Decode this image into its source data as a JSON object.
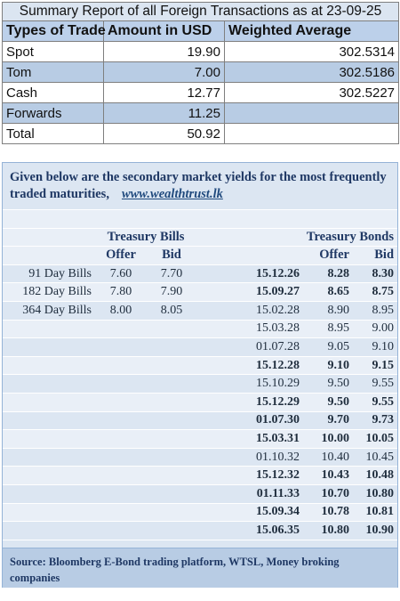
{
  "summary": {
    "title": "Summary Report of all Foreign Transactions as at 23-09-25",
    "headers": [
      "Types of Trade",
      "Amount in USD",
      "Weighted Average"
    ],
    "rows": [
      {
        "type": "Spot",
        "amount": "19.90",
        "wavg": "302.5314"
      },
      {
        "type": "Tom",
        "amount": "7.00",
        "wavg": "302.5186"
      },
      {
        "type": "Cash",
        "amount": "12.77",
        "wavg": "302.5227"
      },
      {
        "type": "Forwards",
        "amount": "11.25",
        "wavg": ""
      },
      {
        "type": "Total",
        "amount": "50.92",
        "wavg": ""
      }
    ]
  },
  "yields": {
    "intro": "Given below are the secondary market yields for the most frequently traded maturities,",
    "link": "www.wealthtrust.lk",
    "bills_title": "Treasury Bills",
    "bonds_title": "Treasury Bonds",
    "offer_label": "Offer",
    "bid_label": "Bid",
    "bills": [
      {
        "name": "91 Day Bills",
        "offer": "7.60",
        "bid": "7.70"
      },
      {
        "name": "182 Day Bills",
        "offer": "7.80",
        "bid": "7.90"
      },
      {
        "name": "364 Day Bills",
        "offer": "8.00",
        "bid": "8.05"
      }
    ],
    "bonds": [
      {
        "date": "15.12.26",
        "offer": "8.28",
        "bid": "8.30",
        "bold": true
      },
      {
        "date": "15.09.27",
        "offer": "8.65",
        "bid": "8.75",
        "bold": true
      },
      {
        "date": "15.02.28",
        "offer": "8.90",
        "bid": "8.95",
        "bold": false
      },
      {
        "date": "15.03.28",
        "offer": "8.95",
        "bid": "9.00",
        "bold": false
      },
      {
        "date": "01.07.28",
        "offer": "9.05",
        "bid": "9.10",
        "bold": false
      },
      {
        "date": "15.12.28",
        "offer": "9.10",
        "bid": "9.15",
        "bold": true
      },
      {
        "date": "15.10.29",
        "offer": "9.50",
        "bid": "9.55",
        "bold": false
      },
      {
        "date": "15.12.29",
        "offer": "9.50",
        "bid": "9.55",
        "bold": true
      },
      {
        "date": "01.07.30",
        "offer": "9.70",
        "bid": "9.73",
        "bold": true
      },
      {
        "date": "15.03.31",
        "offer": "10.00",
        "bid": "10.05",
        "bold": true
      },
      {
        "date": "01.10.32",
        "offer": "10.40",
        "bid": "10.45",
        "bold": false
      },
      {
        "date": "15.12.32",
        "offer": "10.43",
        "bid": "10.48",
        "bold": true
      },
      {
        "date": "01.11.33",
        "offer": "10.70",
        "bid": "10.80",
        "bold": true
      },
      {
        "date": "15.09.34",
        "offer": "10.78",
        "bid": "10.81",
        "bold": true
      },
      {
        "date": "15.06.35",
        "offer": "10.80",
        "bid": "10.90",
        "bold": true
      }
    ],
    "source": "Source: Bloomberg E-Bond trading platform, WTSL, Money broking companies"
  },
  "colors": {
    "header_blue": "#bcd0ea",
    "row_shade": "#b8cce4",
    "panel_bg": "#dce6f2",
    "text_navy": "#1f3864"
  }
}
